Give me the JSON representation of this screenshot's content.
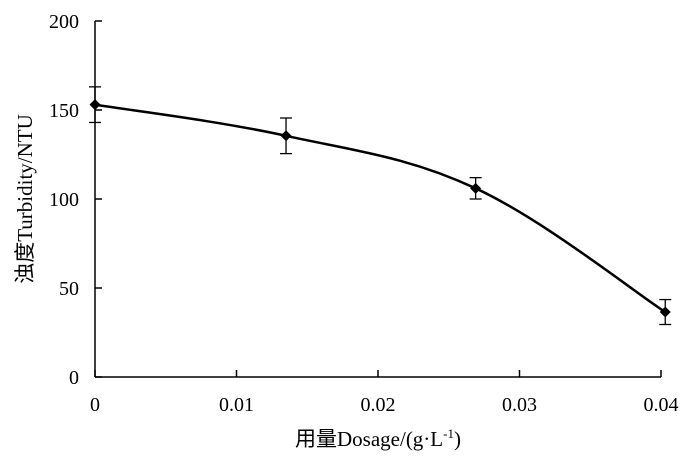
{
  "chart_data": {
    "type": "line",
    "xlabel": "用量Dosage/(g·L",
    "xlabel_sup": "-1",
    "xlabel_tail": ")",
    "ylabel": "浊度Turbidity/NTU",
    "xlim": [
      0,
      0.04
    ],
    "ylim": [
      0,
      200
    ],
    "x_ticks": [
      "0",
      "0.01",
      "0.02",
      "0.03",
      "0.04"
    ],
    "y_ticks": [
      "0",
      "50",
      "100",
      "150",
      "200"
    ],
    "grid": false,
    "legend": "none",
    "series": [
      {
        "x": [
          0,
          0.0135,
          0.0269,
          0.0403
        ],
        "y": [
          153,
          135.5,
          106,
          36.5
        ],
        "error": [
          10,
          10,
          6,
          7
        ],
        "color": "#000000",
        "marker": "diamond"
      }
    ]
  }
}
